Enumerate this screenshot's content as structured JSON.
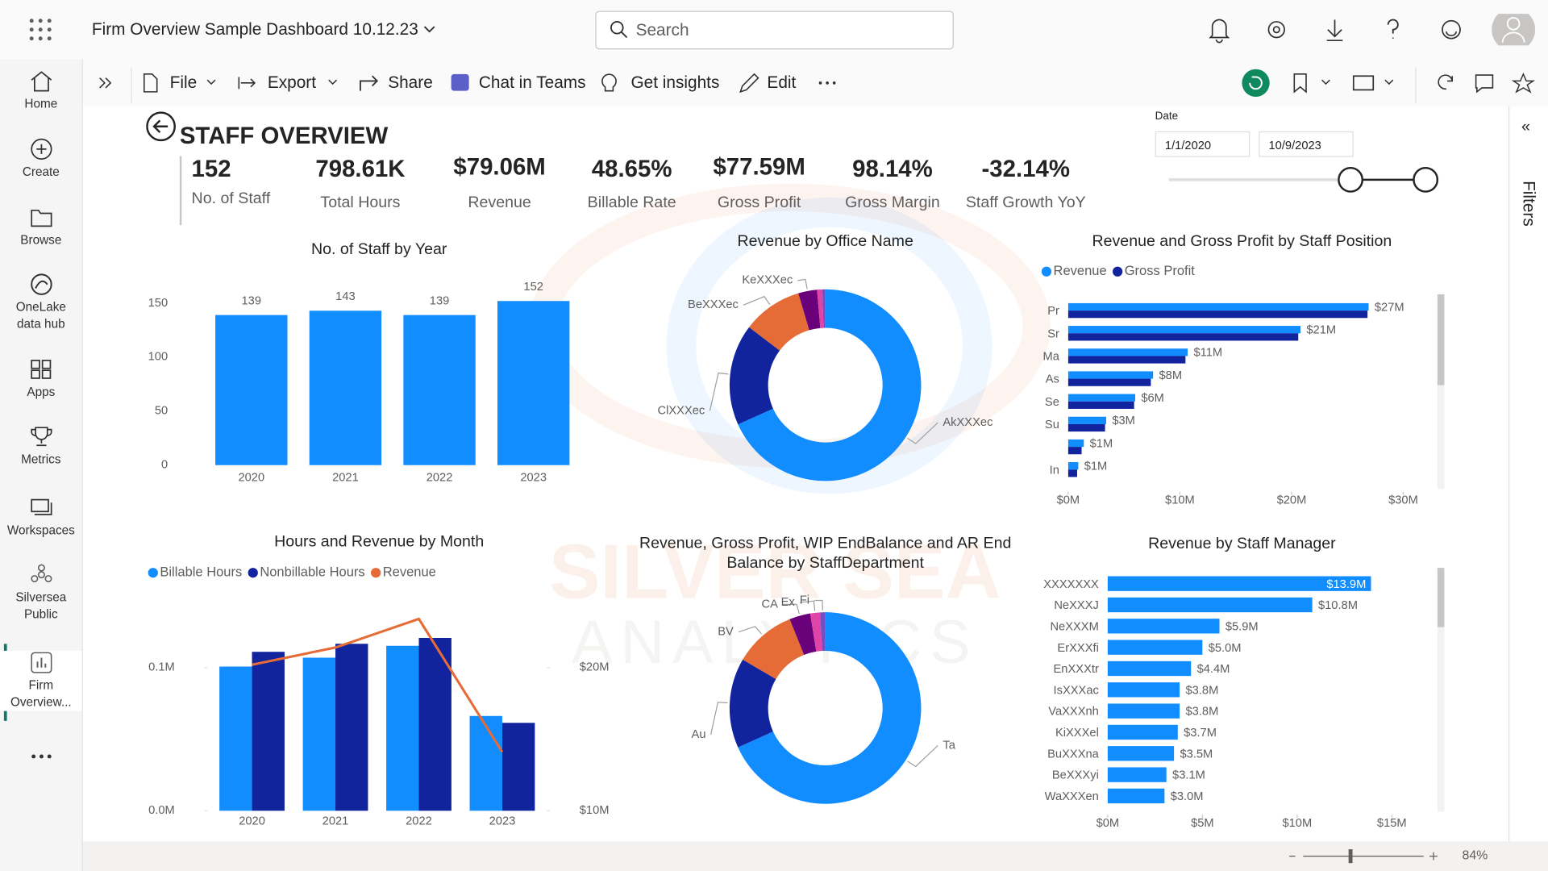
{
  "app_bar": {
    "title": "Firm Overview Sample Dashboard 10.12.23",
    "search": "Search"
  },
  "nav": [
    "Home",
    "Create",
    "Browse",
    "OneLake data hub",
    "Apps",
    "Metrics",
    "Workspaces",
    "Silversea Public",
    "Firm Overview..."
  ],
  "toolbar": [
    "File",
    "Export",
    "Share",
    "Chat in Teams",
    "Get insights",
    "Edit"
  ],
  "report": {
    "title": "STAFF OVERVIEW",
    "kpis": [
      {
        "value": "152",
        "label": "No. of Staff"
      },
      {
        "value": "798.61K",
        "label": "Total Hours"
      },
      {
        "value": "$79.06M",
        "label": "Revenue"
      },
      {
        "value": "48.65%",
        "label": "Billable Rate"
      },
      {
        "value": "$77.59M",
        "label": "Gross Profit"
      },
      {
        "value": "98.14%",
        "label": "Gross Margin"
      },
      {
        "value": "-32.14%",
        "label": "Staff Growth YoY"
      }
    ],
    "date_slicer": {
      "label": "Date",
      "start": "1/1/2020",
      "end": "10/9/2023"
    },
    "watermark": [
      "SILVER SEA",
      "ANALYTICS"
    ]
  },
  "filters_pane": "Filters",
  "zoom": "84%",
  "chart_data": [
    {
      "type": "bar",
      "title": "No. of Staff by Year",
      "categories": [
        "2020",
        "2021",
        "2022",
        "2023"
      ],
      "values": [
        139,
        143,
        139,
        152
      ],
      "color": "#118dff",
      "ylim": [
        0,
        165
      ],
      "yticks": [
        0,
        50,
        100,
        150
      ],
      "grid": false,
      "data_labels": true
    },
    {
      "type": "pie",
      "title": "Revenue by Office Name",
      "categories": [
        "AkXXXec",
        "ClXXXec",
        "BeXXXec",
        "KeXXXec",
        null,
        null
      ],
      "values": [
        54,
        13.5,
        8,
        2.5,
        0.7,
        0.4
      ],
      "colors": [
        "#118dff",
        "#12239e",
        "#e66c37",
        "#6b007b",
        "#e044a7",
        "#744ec2"
      ],
      "donut": true
    },
    {
      "type": "barh",
      "title": "Revenue and Gross Profit by Staff Position",
      "categories": [
        "Pr",
        "Sr",
        "Ma",
        "As",
        "Se",
        "Su",
        null,
        "In"
      ],
      "series": [
        {
          "name": "Revenue",
          "color": "#118dff",
          "values": [
            26.9,
            20.8,
            10.7,
            7.6,
            6.0,
            3.4,
            1.4,
            0.9
          ],
          "value_labels": [
            "$27M",
            "$21M",
            "$11M",
            "$8M",
            "$6M",
            "$3M",
            "$1M",
            "$1M"
          ]
        },
        {
          "name": "Gross Profit",
          "color": "#12239e",
          "values": [
            26.8,
            20.6,
            10.5,
            7.4,
            5.9,
            3.3,
            1.2,
            0.8
          ]
        }
      ],
      "xlim": [
        0,
        32
      ],
      "xticks": [
        {
          "value": 0,
          "label": "$0M"
        },
        {
          "value": 10,
          "label": "$10M"
        },
        {
          "value": 20,
          "label": "$20M"
        },
        {
          "value": 30,
          "label": "$30M"
        }
      ],
      "legend": "top-left"
    },
    {
      "type": "combo",
      "title": "Hours and Revenue by Month",
      "categories": [
        "2020",
        "2021",
        "2022",
        "2023"
      ],
      "series": [
        {
          "name": "Billable Hours",
          "color": "#118dff",
          "kind": "bar",
          "values": [
            100700,
            106900,
            115200,
            66200
          ]
        },
        {
          "name": "Nonbillable Hours",
          "color": "#12239e",
          "kind": "bar",
          "values": [
            111000,
            116600,
            120700,
            61400
          ]
        },
        {
          "name": "Revenue",
          "color": "#e66c37",
          "kind": "line",
          "axis": "y2",
          "values": [
            20200000,
            21400000,
            23400000,
            14100000
          ]
        }
      ],
      "ylim": [
        0,
        150000
      ],
      "yticks": [
        {
          "value": 0,
          "label": "0.0M"
        },
        {
          "value": 100000,
          "label": "0.1M"
        }
      ],
      "y2lim": [
        10000000,
        25000000
      ],
      "y2ticks": [
        {
          "value": 10000000,
          "label": "$10M"
        },
        {
          "value": 20000000,
          "label": "$20M"
        }
      ],
      "legend": "top-left"
    },
    {
      "type": "pie",
      "title": "Revenue, Gross Profit, WIP EndBalance and AR End Balance by StaffDepartment",
      "categories": [
        "Ta",
        "Au",
        "BV",
        "CA",
        "Ex",
        "Fi"
      ],
      "values": [
        54,
        12,
        8.3,
        2.8,
        1.3,
        0.7
      ],
      "colors": [
        "#118dff",
        "#12239e",
        "#e66c37",
        "#6b007b",
        "#e044a7",
        "#744ec2"
      ],
      "donut": true
    },
    {
      "type": "barh",
      "title": "Revenue by Staff Manager",
      "categories": [
        "XXXXXXX",
        "NeXXXJ",
        "NeXXXM",
        "ErXXXfi",
        "EnXXXtr",
        "IsXXXac",
        "VaXXXnh",
        "KiXXXel",
        "BuXXXna",
        "BeXXXyi",
        "WaXXXen"
      ],
      "series": [
        {
          "color": "#118dff",
          "values": [
            13.9,
            10.8,
            5.9,
            5.0,
            4.4,
            3.8,
            3.8,
            3.7,
            3.5,
            3.1,
            3.0
          ],
          "value_labels": [
            "$13.9M",
            "$10.8M",
            "$5.9M",
            "$5.0M",
            "$4.4M",
            "$3.8M",
            "$3.8M",
            "$3.7M",
            "$3.5M",
            "$3.1M",
            "$3.0M"
          ]
        }
      ],
      "xlim": [
        0,
        16
      ],
      "xticks": [
        {
          "value": 0,
          "label": "$0M"
        },
        {
          "value": 5,
          "label": "$5M"
        },
        {
          "value": 10,
          "label": "$10M"
        },
        {
          "value": 15,
          "label": "$15M"
        }
      ]
    }
  ]
}
